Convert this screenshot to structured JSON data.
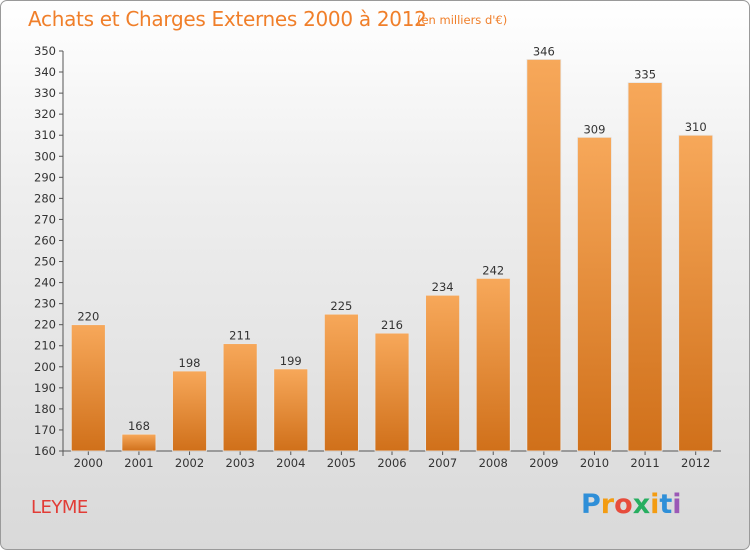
{
  "header": {
    "title": "Achats et Charges Externes 2000 à 2012",
    "unit": "(en milliers d'€)"
  },
  "footer": {
    "place": "LEYME",
    "brand": "Proxiti",
    "brand_colors": [
      "#2f8fd8",
      "#f39c12",
      "#e74c3c",
      "#27ae60",
      "#f39c12",
      "#2f8fd8",
      "#9b59b6"
    ]
  },
  "colors": {
    "accent": "#f07f2a",
    "bar_top": "#f7a85a",
    "bar_bottom": "#d0701a",
    "place": "#e23c36"
  },
  "chart_data": {
    "type": "bar",
    "title": "Achats et Charges Externes 2000 à 2012",
    "subtitle": "(en milliers d'€)",
    "xlabel": "",
    "ylabel": "",
    "categories": [
      "2000",
      "2001",
      "2002",
      "2003",
      "2004",
      "2005",
      "2006",
      "2007",
      "2008",
      "2009",
      "2010",
      "2011",
      "2012"
    ],
    "values": [
      220,
      168,
      198,
      211,
      199,
      225,
      216,
      234,
      242,
      346,
      309,
      335,
      310
    ],
    "ylim": [
      160,
      350
    ],
    "ytick_step": 10,
    "grid": false,
    "data_labels": true
  }
}
